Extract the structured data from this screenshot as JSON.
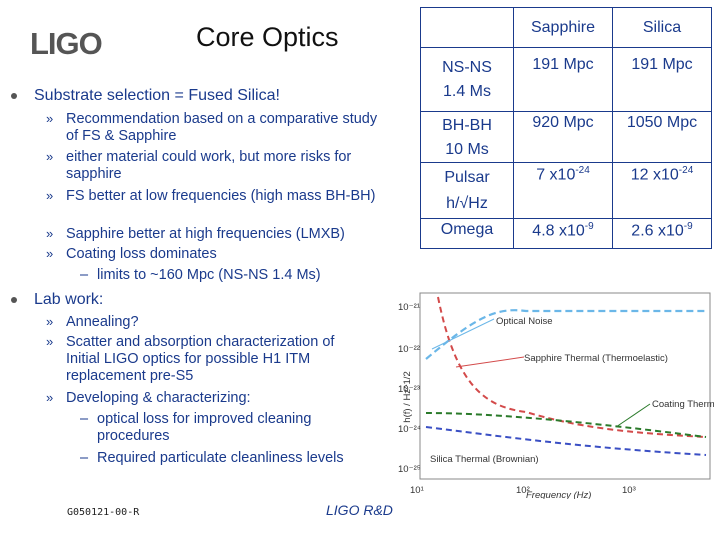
{
  "header": {
    "logo_text": "LIGO",
    "title": "Core Optics"
  },
  "left": {
    "section1": {
      "heading": "Substrate selection = Fused Silica!",
      "items": [
        "Recommendation based on a comparative study of FS & Sapphire",
        "either material could work, but more risks for sapphire",
        "FS better at low frequencies (high mass BH-BH)",
        "Sapphire better at high frequencies (LMXB)",
        "Coating loss dominates"
      ],
      "subitem": "limits to ~160 Mpc (NS-NS 1.4 Ms)"
    },
    "section2": {
      "heading": "Lab work:",
      "items": [
        "Annealing?",
        "Scatter and absorption characterization of Initial LIGO optics for possible H1 ITM replacement pre-S5",
        "Developing & characterizing:"
      ],
      "subitems": [
        "optical loss for improved cleaning procedures",
        "Required particulate cleanliness levels"
      ]
    }
  },
  "table": {
    "headers": [
      "",
      "Sapphire",
      "Silica"
    ],
    "rows": [
      {
        "label": "NS-NS",
        "label2": "1.4 Ms",
        "sapphire": "191 Mpc",
        "silica": "191 Mpc"
      },
      {
        "label": "BH-BH",
        "label2": "10 Ms",
        "sapphire": "920 Mpc",
        "silica": "1050 Mpc"
      },
      {
        "label": "Pulsar",
        "label2": "h/√Hz",
        "sapphire_base": "7 x10",
        "sapphire_exp": "-24",
        "silica_base": "12 x10",
        "silica_exp": "-24"
      },
      {
        "label": "Omega",
        "label2": "",
        "sapphire_base": "4.8 x10",
        "sapphire_exp": "-9",
        "silica_base": "2.6 x10",
        "silica_exp": "-9"
      }
    ]
  },
  "plot": {
    "ylabel": "h(f) / Hz^1/2",
    "xlabel": "Frequency (Hz)",
    "xticks": [
      "10¹",
      "10²",
      "10³"
    ],
    "yticks": [
      "10⁻²¹",
      "10⁻²²",
      "10⁻²³",
      "10⁻²⁴",
      "10⁻²⁵"
    ],
    "curve_labels": {
      "optical_noise": "Optical Noise",
      "sapphire": "Sapphire Thermal (Thermoelastic)",
      "coating": "Coating Thermal",
      "silica": "Silica Thermal (Brownian)"
    },
    "colors": {
      "optical": "#6bb7e8",
      "sapphire": "#d34a4a",
      "coating": "#2a7a2a",
      "silica": "#3a4fc4"
    }
  },
  "footer": {
    "doc_id": "G050121-00-R",
    "label": "LIGO R&D"
  }
}
